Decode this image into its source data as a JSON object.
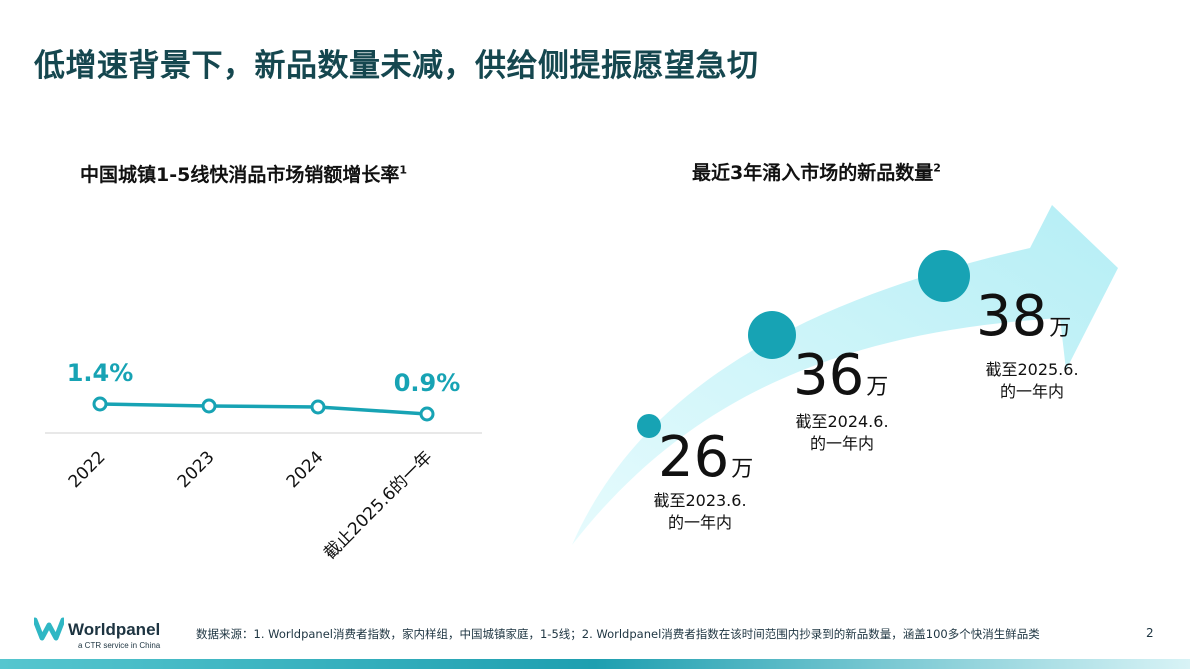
{
  "title": "低增速背景下，新品数量未减，供给侧提振愿望急切",
  "colors": {
    "accent": "#17a3b4",
    "title": "#15474f",
    "arrow": "#c3f3f8"
  },
  "chart_data": [
    {
      "type": "line",
      "title": "中国城镇1-5线快消品市场销额增长率",
      "title_sup": "1",
      "categories": [
        "2022",
        "2023",
        "2024",
        "截止2025.6的一年"
      ],
      "values": [
        1.4,
        1.3,
        1.25,
        0.9
      ],
      "data_labels": {
        "first": "1.4%",
        "last": "0.9%"
      },
      "unit": "%"
    },
    {
      "type": "scatter",
      "title": "最近3年涌入市场的新品数量",
      "title_sup": "2",
      "unit": "万",
      "points": [
        {
          "value": "26",
          "label_line1": "截至2023.6.",
          "label_line2": "的一年内"
        },
        {
          "value": "36",
          "label_line1": "截至2024.6.",
          "label_line2": "的一年内"
        },
        {
          "value": "38",
          "label_line1": "截至2025.6.",
          "label_line2": "的一年内"
        }
      ]
    }
  ],
  "footer": {
    "brand": "Worldpanel",
    "brand_sub": "a CTR service in China",
    "source": "数据来源：1. Worldpanel消费者指数，家内样组，中国城镇家庭，1-5线；2. Worldpanel消费者指数在该时间范围内抄录到的新品数量，涵盖100多个快消生鲜品类",
    "page_number": "2"
  }
}
